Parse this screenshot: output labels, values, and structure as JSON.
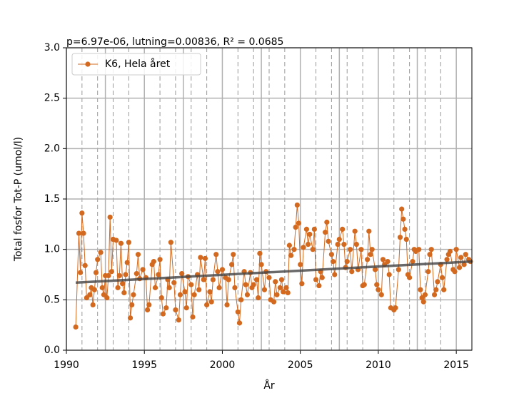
{
  "chart_data": {
    "type": "line",
    "title": "p=6.97e-06, lutning=0.00836, R² = 0.0685",
    "xlabel": "År",
    "ylabel": "Total fosfor Tot-P (umol/l)",
    "xlim": [
      1990,
      2016
    ],
    "xticks": [
      1990,
      1995,
      2000,
      2005,
      2010,
      2015
    ],
    "ylim": [
      0,
      3
    ],
    "yticks": [
      {
        "value": 0,
        "label": "0.0"
      },
      0.5,
      {
        "value": 1,
        "label": "1.0"
      },
      1.5,
      {
        "value": 2,
        "label": "2.0"
      },
      2.5,
      {
        "value": 3,
        "label": "3.0"
      }
    ],
    "grid": true,
    "year_lines": true,
    "legend": "upper left",
    "x": [
      1990.6,
      1990.8,
      1990.9,
      1991.0,
      1991.1,
      1991.2,
      1991.3,
      1991.5,
      1991.6,
      1991.7,
      1991.8,
      1991.9,
      1992.0,
      1992.2,
      1992.3,
      1992.4,
      1992.5,
      1992.6,
      1992.7,
      1992.8,
      1992.9,
      1993.0,
      1993.2,
      1993.3,
      1993.4,
      1993.5,
      1993.6,
      1993.7,
      1993.8,
      1993.9,
      1994.0,
      1994.1,
      1994.2,
      1994.3,
      1994.5,
      1994.6,
      1994.7,
      1994.9,
      1995.1,
      1995.2,
      1995.3,
      1995.5,
      1995.6,
      1995.7,
      1995.9,
      1996.0,
      1996.1,
      1996.2,
      1996.4,
      1996.5,
      1996.6,
      1996.7,
      1996.9,
      1997.0,
      1997.2,
      1997.3,
      1997.4,
      1997.6,
      1997.7,
      1997.8,
      1998.0,
      1998.1,
      1998.2,
      1998.4,
      1998.5,
      1998.6,
      1998.8,
      1998.9,
      1999.0,
      1999.2,
      1999.3,
      1999.4,
      1999.6,
      1999.7,
      1999.8,
      2000.0,
      2000.2,
      2000.3,
      2000.4,
      2000.6,
      2000.7,
      2000.8,
      2001.0,
      2001.1,
      2001.2,
      2001.4,
      2001.5,
      2001.6,
      2001.8,
      2001.9,
      2002.0,
      2002.2,
      2002.3,
      2002.4,
      2002.5,
      2002.7,
      2002.8,
      2003.0,
      2003.1,
      2003.3,
      2003.4,
      2003.5,
      2003.7,
      2003.8,
      2003.9,
      2004.1,
      2004.2,
      2004.3,
      2004.4,
      2004.6,
      2004.7,
      2004.8,
      2004.9,
      2005.0,
      2005.1,
      2005.2,
      2005.4,
      2005.5,
      2005.6,
      2005.8,
      2005.9,
      2006.0,
      2006.2,
      2006.3,
      2006.4,
      2006.6,
      2006.7,
      2006.8,
      2007.0,
      2007.1,
      2007.2,
      2007.4,
      2007.5,
      2007.7,
      2007.8,
      2007.9,
      2008.0,
      2008.2,
      2008.3,
      2008.5,
      2008.6,
      2008.7,
      2008.9,
      2009.0,
      2009.1,
      2009.3,
      2009.4,
      2009.5,
      2009.6,
      2009.8,
      2009.9,
      2010.0,
      2010.2,
      2010.3,
      2010.4,
      2010.6,
      2010.7,
      2010.8,
      2011.0,
      2011.1,
      2011.3,
      2011.4,
      2011.5,
      2011.6,
      2011.7,
      2011.8,
      2011.9,
      2012.0,
      2012.2,
      2012.3,
      2012.4,
      2012.6,
      2012.7,
      2012.8,
      2012.9,
      2013.0,
      2013.2,
      2013.3,
      2013.4,
      2013.6,
      2013.7,
      2013.8,
      2014.0,
      2014.1,
      2014.2,
      2014.4,
      2014.5,
      2014.6,
      2014.8,
      2014.9,
      2015.0,
      2015.2,
      2015.3,
      2015.5,
      2015.6,
      2015.8,
      2015.9
    ],
    "series": [
      {
        "name": "K6, Hela året",
        "color": "#d2691e",
        "values": [
          0.23,
          1.16,
          0.77,
          1.36,
          1.16,
          0.84,
          0.52,
          0.55,
          0.62,
          0.45,
          0.6,
          0.77,
          0.9,
          0.97,
          0.62,
          0.55,
          0.74,
          0.52,
          0.74,
          1.32,
          0.78,
          1.1,
          1.09,
          0.62,
          0.74,
          1.06,
          0.66,
          0.57,
          0.75,
          0.87,
          1.07,
          0.32,
          0.45,
          0.55,
          0.76,
          0.95,
          0.71,
          0.8,
          0.72,
          0.4,
          0.45,
          0.85,
          0.88,
          0.62,
          0.75,
          0.9,
          0.52,
          0.36,
          0.42,
          0.7,
          0.62,
          1.07,
          0.67,
          0.4,
          0.3,
          0.55,
          0.76,
          0.58,
          0.42,
          0.73,
          0.65,
          0.33,
          0.55,
          0.75,
          0.6,
          0.92,
          0.7,
          0.91,
          0.45,
          0.58,
          0.48,
          0.7,
          0.95,
          0.78,
          0.62,
          0.8,
          0.72,
          0.45,
          0.7,
          0.85,
          0.95,
          0.62,
          0.38,
          0.27,
          0.5,
          0.78,
          0.65,
          0.55,
          0.77,
          0.62,
          0.65,
          0.7,
          0.52,
          0.96,
          0.85,
          0.6,
          0.78,
          0.72,
          0.5,
          0.48,
          0.68,
          0.55,
          0.62,
          0.7,
          0.58,
          0.62,
          0.57,
          1.04,
          0.94,
          1.0,
          1.22,
          1.44,
          1.26,
          0.85,
          0.66,
          1.02,
          1.2,
          1.05,
          1.15,
          1.0,
          1.2,
          0.7,
          0.64,
          0.78,
          0.72,
          1.17,
          1.27,
          1.08,
          0.95,
          0.88,
          0.75,
          1.05,
          1.1,
          1.2,
          1.05,
          0.82,
          0.88,
          1.0,
          0.78,
          1.18,
          1.05,
          0.8,
          1.0,
          0.64,
          0.65,
          0.9,
          1.18,
          0.95,
          1.0,
          0.8,
          0.65,
          0.6,
          0.55,
          0.9,
          0.85,
          0.88,
          0.75,
          0.42,
          0.4,
          0.42,
          0.8,
          1.12,
          1.4,
          1.3,
          1.2,
          1.1,
          0.75,
          0.72,
          0.88,
          1.0,
          0.98,
          1.0,
          0.6,
          0.52,
          0.48,
          0.55,
          0.78,
          0.95,
          1.0,
          0.55,
          0.6,
          0.68,
          0.85,
          0.72,
          0.6,
          0.9,
          0.95,
          0.98,
          0.8,
          0.78,
          1.0,
          0.82,
          0.92,
          0.85,
          0.95,
          0.9,
          0.88
        ]
      }
    ],
    "trend": {
      "x": [
        1990.6,
        2016
      ],
      "values": [
        0.67,
        0.88
      ],
      "color": "#444444"
    }
  }
}
